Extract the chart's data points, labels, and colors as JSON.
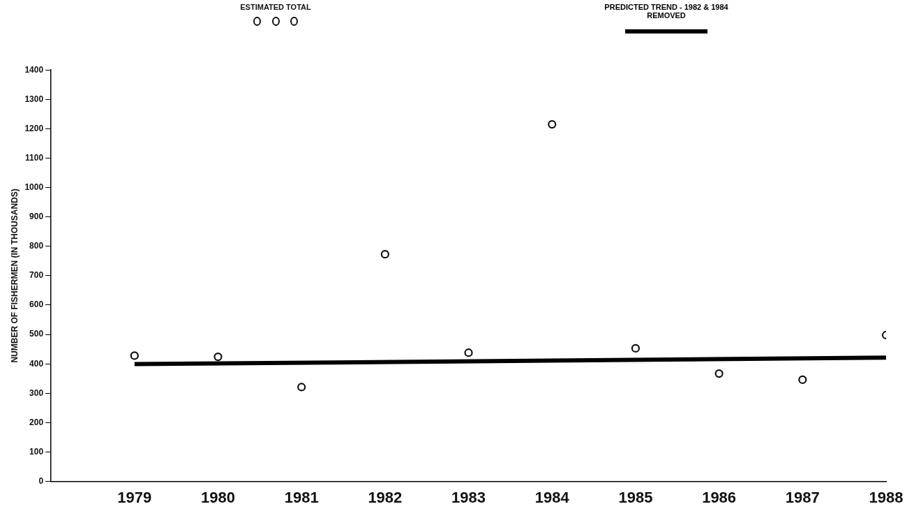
{
  "chart_data": {
    "type": "scatter",
    "ylabel": "NUMBER OF FISHERMEN (IN THOUSANDS)",
    "legend": "top",
    "grid": false,
    "xlim": [
      1978,
      1988
    ],
    "xticks": [
      {
        "value": 1978,
        "label": null
      },
      1979,
      1980,
      1981,
      1982,
      1983,
      1984,
      1985,
      1986,
      1987,
      1988
    ],
    "ylim": [
      0,
      1400
    ],
    "yticks": [
      0,
      100,
      200,
      300,
      400,
      500,
      600,
      700,
      800,
      900,
      1000,
      1100,
      1200,
      1300,
      1400
    ],
    "series": [
      {
        "name": "ESTIMATED TOTAL",
        "marker": "circle",
        "color": "#111111",
        "x": [
          1979,
          1980,
          1981,
          1982,
          1983,
          1984,
          1985,
          1986,
          1987,
          1988
        ],
        "values": [
          428,
          424,
          321,
          773,
          438,
          1215,
          453,
          367,
          346,
          498
        ]
      },
      {
        "name": "PREDICTED TREND - 1982 & 1984 REMOVED",
        "type": "line",
        "marker": "none",
        "color": "#000000",
        "x": [
          1979,
          1988
        ],
        "values": [
          399,
          421
        ]
      }
    ]
  }
}
